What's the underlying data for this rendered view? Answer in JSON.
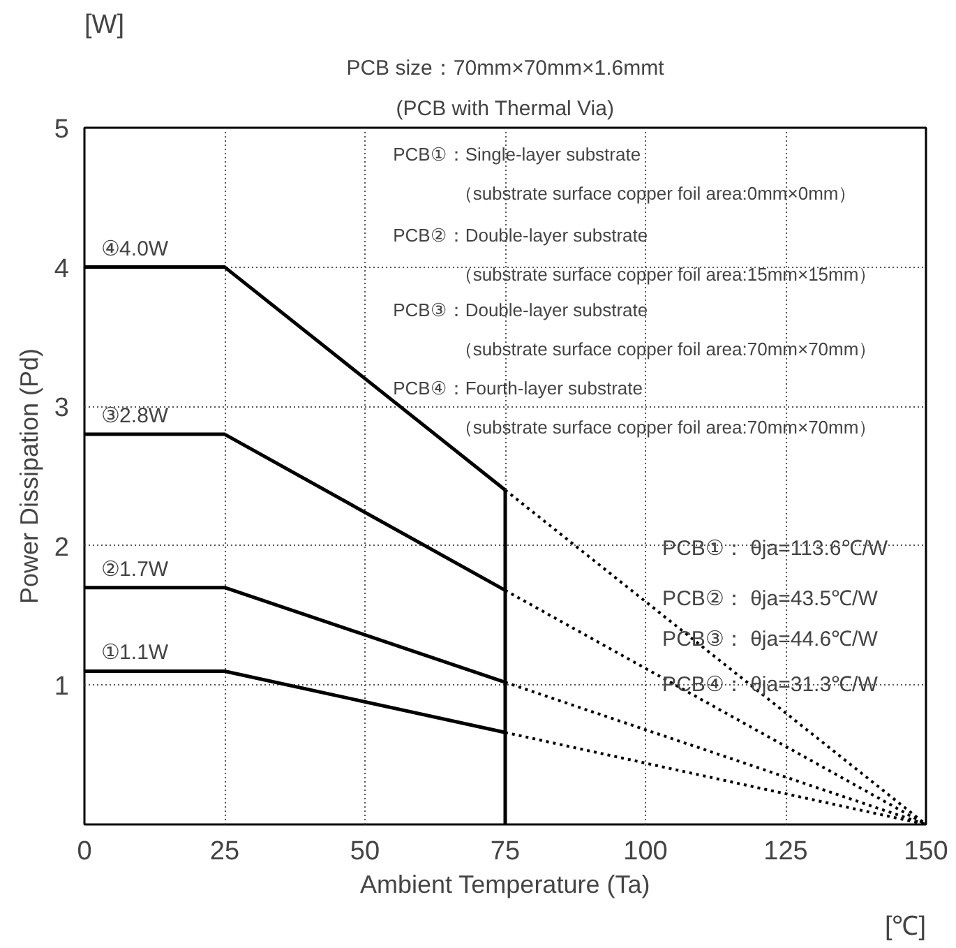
{
  "chart_data": {
    "type": "line",
    "title": "PCB size：70mm×70mm×1.6mmt",
    "subtitle": "(PCB with Thermal Via)",
    "xlabel": "Ambient Temperature (Ta)",
    "ylabel": "Power Dissipation (Pd)",
    "xlim": [
      0,
      150
    ],
    "ylim": [
      0,
      5
    ],
    "xticks": [
      0,
      25,
      50,
      75,
      100,
      125,
      150
    ],
    "yticks": [
      1,
      2,
      3,
      4,
      5
    ],
    "grid": true,
    "line_style": "solid",
    "series": [
      {
        "color": "#000000",
        "x": [
          0,
          25,
          75
        ],
        "values": [
          4.0,
          4.0,
          2.4
        ]
      },
      {
        "color": "#000000",
        "x": [
          0,
          25,
          75
        ],
        "values": [
          2.8,
          2.8,
          1.68
        ]
      },
      {
        "color": "#000000",
        "x": [
          0,
          25,
          75
        ],
        "values": [
          1.7,
          1.7,
          1.02
        ]
      },
      {
        "color": "#000000",
        "x": [
          0,
          25,
          75
        ],
        "values": [
          1.1,
          1.1,
          0.66
        ]
      },
      {
        "color": "#000000",
        "x": [
          75,
          75
        ],
        "values": [
          0,
          2.4
        ]
      },
      {
        "color": "#000000",
        "x": [
          75,
          150
        ],
        "values": [
          2.4,
          0
        ],
        "line_style": "dotted"
      },
      {
        "color": "#000000",
        "x": [
          75,
          150
        ],
        "values": [
          1.68,
          0
        ],
        "line_style": "dotted"
      },
      {
        "color": "#000000",
        "x": [
          75,
          150
        ],
        "values": [
          1.02,
          0
        ],
        "line_style": "dotted"
      },
      {
        "color": "#000000",
        "x": [
          75,
          150
        ],
        "values": [
          0.66,
          0
        ],
        "line_style": "dotted"
      }
    ],
    "annotations": [
      "④4.0W",
      "③2.8W",
      "②1.7W",
      "①1.1W",
      "PCB①：Single-layer substrate",
      "（substrate surface copper foil area:0mm×0mm）",
      "PCB②：Double-layer substrate",
      "（substrate surface copper foil area:15mm×15mm）",
      "PCB③：Double-layer substrate",
      "（substrate surface copper foil area:70mm×70mm）",
      "PCB④：Fourth-layer substrate",
      "（substrate surface copper foil area:70mm×70mm）",
      "PCB①： θja=113.6℃/W",
      "PCB②： θja=43.5℃/W",
      "PCB③： θja=44.6℃/W",
      "PCB④： θja=31.3℃/W",
      "[W]",
      "[℃]"
    ]
  }
}
